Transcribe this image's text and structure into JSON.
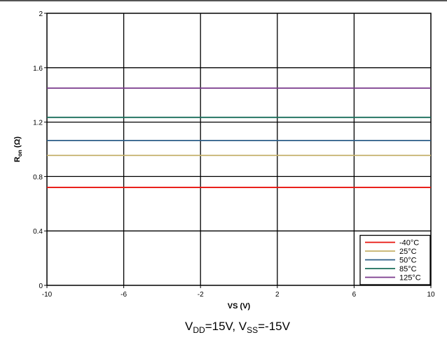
{
  "chart_data": {
    "type": "line",
    "title": "",
    "xlabel": "VS (V)",
    "ylabel": {
      "base": "R",
      "sub": "on",
      "rest": " (Ω)"
    },
    "xlim": [
      -10,
      10
    ],
    "ylim": [
      0,
      2
    ],
    "x_ticks": [
      "-10",
      "-6",
      "-2",
      "2",
      "6",
      "10"
    ],
    "y_ticks": [
      "0",
      "0.4",
      "0.8",
      "1.2",
      "1.6",
      "2"
    ],
    "grid": true,
    "legend_position": "bottom-right",
    "series": [
      {
        "name": "-40°C",
        "color": "#e8120c",
        "x": [
          -10,
          10
        ],
        "y": [
          0.72,
          0.72
        ]
      },
      {
        "name": "25°C",
        "color": "#c4b06a",
        "x": [
          -10,
          10
        ],
        "y": [
          0.955,
          0.955
        ]
      },
      {
        "name": "50°C",
        "color": "#2b5d87",
        "x": [
          -10,
          10
        ],
        "y": [
          1.065,
          1.065
        ]
      },
      {
        "name": "85°C",
        "color": "#1a6e5a",
        "x": [
          -10,
          10
        ],
        "y": [
          1.235,
          1.235
        ]
      },
      {
        "name": "125°C",
        "color": "#7a3a8c",
        "x": [
          -10,
          10
        ],
        "y": [
          1.45,
          1.45
        ]
      }
    ],
    "caption": [
      {
        "t": "V",
        "sub": false
      },
      {
        "t": "DD",
        "sub": true
      },
      {
        "t": "=15V, V",
        "sub": false
      },
      {
        "t": "SS",
        "sub": true
      },
      {
        "t": "=-15V",
        "sub": false
      }
    ]
  }
}
